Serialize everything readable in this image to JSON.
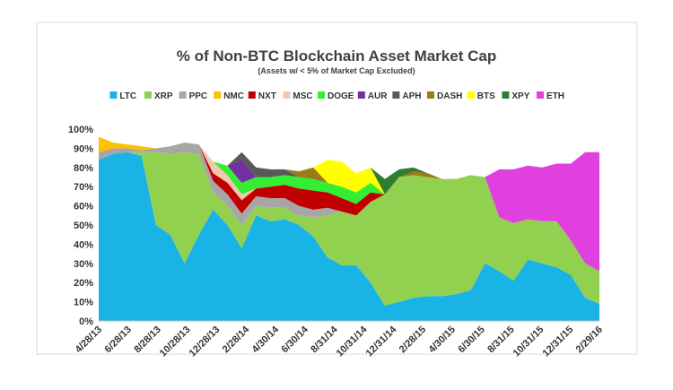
{
  "chart_data": {
    "type": "area",
    "stacked": true,
    "title": "% of Non-BTC Blockchain Asset Market Cap",
    "subtitle": "(Assets w/ < 5% of Market Cap Excluded)",
    "xlabel": "",
    "ylabel": "",
    "ylim": [
      0,
      100
    ],
    "y_ticks": [
      "0%",
      "10%",
      "20%",
      "30%",
      "40%",
      "50%",
      "60%",
      "70%",
      "80%",
      "90%",
      "100%"
    ],
    "x_ticks": [
      "4/28/13",
      "6/28/13",
      "8/28/13",
      "10/28/13",
      "12/28/13",
      "2/28/14",
      "4/30/14",
      "6/30/14",
      "8/31/14",
      "10/31/14",
      "12/31/14",
      "2/28/15",
      "4/30/15",
      "6/30/15",
      "8/31/15",
      "10/31/15",
      "12/31/15",
      "2/29/16"
    ],
    "x": [
      "4/28/13",
      "5/28/13",
      "6/28/13",
      "7/28/13",
      "8/28/13",
      "9/28/13",
      "10/28/13",
      "11/28/13",
      "12/28/13",
      "1/28/14",
      "2/28/14",
      "3/30/14",
      "4/30/14",
      "5/30/14",
      "6/30/14",
      "7/30/14",
      "8/31/14",
      "9/30/14",
      "10/31/14",
      "11/30/14",
      "12/31/14",
      "1/30/15",
      "2/28/15",
      "3/30/15",
      "4/30/15",
      "5/30/15",
      "6/30/15",
      "7/30/15",
      "8/31/15",
      "9/30/15",
      "10/31/15",
      "11/30/15",
      "12/31/15",
      "1/30/16",
      "2/29/16",
      "3/15/16"
    ],
    "grid": false,
    "legend_position": "top",
    "series": [
      {
        "name": "LTC",
        "color": "#19b3e6",
        "values": [
          84,
          87,
          88,
          86,
          50,
          45,
          30,
          45,
          58,
          50,
          38,
          55,
          52,
          53,
          50,
          44,
          33,
          29,
          29,
          20,
          8,
          10,
          12,
          13,
          13,
          14,
          16,
          30,
          26,
          21,
          32,
          30,
          28,
          24,
          12,
          9
        ]
      },
      {
        "name": "XRP",
        "color": "#92d050",
        "values": [
          0,
          0,
          0,
          2,
          38,
          42,
          58,
          42,
          9,
          10,
          12,
          5,
          7,
          6,
          5,
          10,
          22,
          28,
          26,
          42,
          58,
          65,
          64,
          62,
          61,
          60,
          60,
          45,
          28,
          30,
          21,
          22,
          24,
          18,
          18,
          17
        ]
      },
      {
        "name": "PPC",
        "color": "#a6a6a6",
        "values": [
          4,
          3,
          2,
          1,
          2,
          4,
          5,
          5,
          6,
          6,
          6,
          5,
          5,
          5,
          5,
          4,
          4,
          0,
          0,
          0,
          0,
          0,
          0,
          0,
          0,
          0,
          0,
          0,
          0,
          0,
          0,
          0,
          0,
          0,
          0,
          0
        ]
      },
      {
        "name": "NMC",
        "color": "#ffc000",
        "values": [
          8,
          3,
          2,
          2,
          0,
          0,
          0,
          0,
          0,
          0,
          0,
          0,
          0,
          0,
          0,
          0,
          0,
          0,
          0,
          0,
          0,
          0,
          0,
          0,
          0,
          0,
          0,
          0,
          0,
          0,
          0,
          0,
          0,
          0,
          0,
          0
        ]
      },
      {
        "name": "NXT",
        "color": "#c00000",
        "values": [
          0,
          0,
          0,
          0,
          0,
          0,
          0,
          0,
          4,
          6,
          7,
          4,
          6,
          7,
          9,
          10,
          8,
          7,
          6,
          5,
          0,
          0,
          0,
          0,
          0,
          0,
          0,
          0,
          0,
          0,
          0,
          0,
          0,
          0,
          0,
          0
        ]
      },
      {
        "name": "MSC",
        "color": "#f4c6b0",
        "values": [
          0,
          0,
          0,
          0,
          0,
          0,
          0,
          0,
          6,
          4,
          3,
          0,
          0,
          0,
          0,
          0,
          0,
          0,
          0,
          0,
          0,
          0,
          0,
          0,
          0,
          0,
          0,
          0,
          0,
          0,
          0,
          0,
          0,
          0,
          0,
          0
        ]
      },
      {
        "name": "DOGE",
        "color": "#33ee33",
        "values": [
          0,
          0,
          0,
          0,
          0,
          0,
          0,
          0,
          0,
          5,
          6,
          6,
          5,
          5,
          6,
          6,
          5,
          6,
          6,
          5,
          0,
          0,
          0,
          0,
          0,
          0,
          0,
          0,
          0,
          0,
          0,
          0,
          0,
          0,
          0,
          0
        ]
      },
      {
        "name": "AUR",
        "color": "#7030a0",
        "values": [
          0,
          0,
          0,
          0,
          0,
          0,
          0,
          0,
          0,
          0,
          12,
          0,
          0,
          0,
          0,
          0,
          0,
          0,
          0,
          0,
          0,
          0,
          0,
          0,
          0,
          0,
          0,
          0,
          0,
          0,
          0,
          0,
          0,
          0,
          0,
          0
        ]
      },
      {
        "name": "APH",
        "color": "#595959",
        "values": [
          0,
          0,
          0,
          0,
          0,
          0,
          0,
          0,
          0,
          0,
          4,
          5,
          4,
          3,
          0,
          0,
          0,
          0,
          0,
          0,
          0,
          0,
          0,
          0,
          0,
          0,
          0,
          0,
          0,
          0,
          0,
          0,
          0,
          0,
          0,
          0
        ]
      },
      {
        "name": "DASH",
        "color": "#9c7a16",
        "values": [
          0,
          0,
          0,
          0,
          0,
          0,
          0,
          0,
          0,
          0,
          0,
          0,
          0,
          0,
          3,
          6,
          0,
          0,
          0,
          0,
          0,
          0,
          2,
          2,
          0,
          0,
          0,
          0,
          0,
          0,
          0,
          0,
          0,
          0,
          0,
          0
        ]
      },
      {
        "name": "BTS",
        "color": "#ffff00",
        "values": [
          0,
          0,
          0,
          0,
          0,
          0,
          0,
          0,
          0,
          0,
          0,
          0,
          0,
          0,
          0,
          0,
          12,
          13,
          10,
          8,
          0,
          0,
          0,
          0,
          0,
          0,
          0,
          0,
          0,
          0,
          0,
          0,
          0,
          0,
          0,
          0
        ]
      },
      {
        "name": "XPY",
        "color": "#2e7d32",
        "values": [
          0,
          0,
          0,
          0,
          0,
          0,
          0,
          0,
          0,
          0,
          0,
          0,
          0,
          0,
          0,
          0,
          0,
          0,
          0,
          0,
          8,
          4,
          2,
          0,
          0,
          0,
          0,
          0,
          0,
          0,
          0,
          0,
          0,
          0,
          0,
          0
        ]
      },
      {
        "name": "ETH",
        "color": "#e040e0",
        "values": [
          0,
          0,
          0,
          0,
          0,
          0,
          0,
          0,
          0,
          0,
          0,
          0,
          0,
          0,
          0,
          0,
          0,
          0,
          0,
          0,
          0,
          0,
          0,
          0,
          0,
          0,
          0,
          0,
          25,
          28,
          28,
          28,
          30,
          40,
          58,
          62
        ]
      }
    ]
  }
}
